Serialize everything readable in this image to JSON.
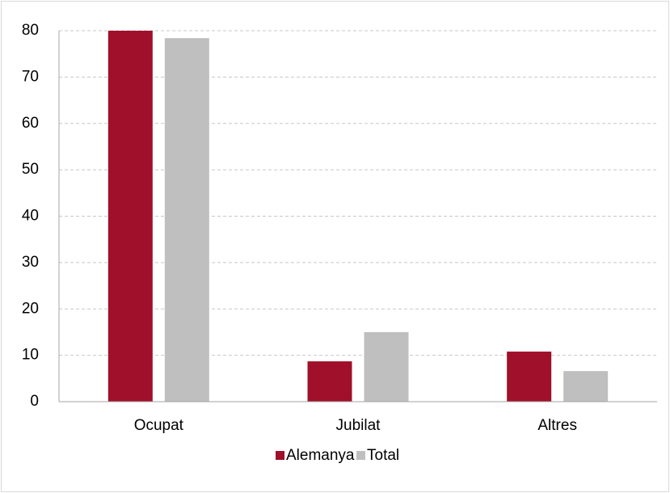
{
  "chart_data": {
    "type": "bar",
    "categories": [
      "Ocupat",
      "Jubilat",
      "Altres"
    ],
    "series": [
      {
        "name": "Alemanya",
        "color": "#a0102a",
        "values": [
          80,
          8.7,
          10.8
        ]
      },
      {
        "name": "Total",
        "color": "#bfbfbf",
        "values": [
          78.4,
          15.0,
          6.6
        ]
      }
    ],
    "ylim": [
      0,
      80
    ],
    "yticks": [
      0,
      10,
      20,
      30,
      40,
      50,
      60,
      70,
      80
    ],
    "grid": true,
    "legend": "bottom"
  }
}
